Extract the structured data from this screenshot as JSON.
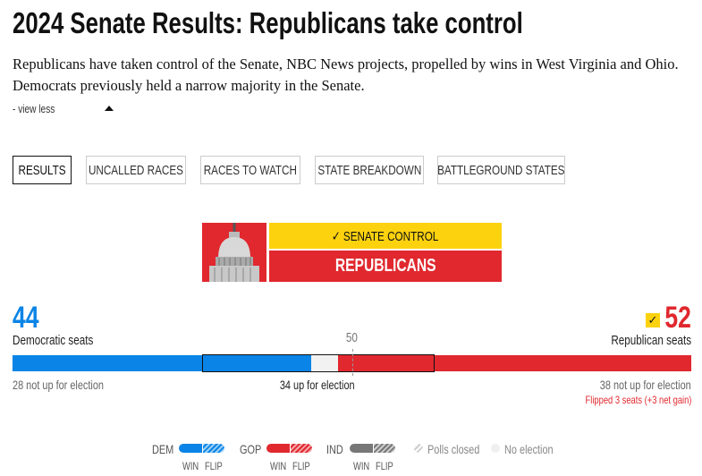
{
  "header": {
    "title": "2024 Senate Results: Republicans take control",
    "description": "Republicans have taken control of the Senate, NBC News projects, propelled by wins in West Virginia and Ohio. Democrats previously held a narrow majority in the Senate.",
    "view_less": "- view less"
  },
  "tabs": [
    {
      "label": "RESULTS",
      "active": true
    },
    {
      "label": "UNCALLED RACES"
    },
    {
      "label": "RACES TO WATCH"
    },
    {
      "label": "STATE BREAKDOWN"
    },
    {
      "label": "BATTLEGROUND STATES"
    }
  ],
  "control": {
    "check": "✓",
    "label": "SENATE CONTROL",
    "winner": "REPUBLICANS"
  },
  "dem": {
    "seats": "44",
    "label": "Democratic seats",
    "not_up": "28 not up for election",
    "not_up_count": 28,
    "won_up": 16,
    "color": "#0a84e6"
  },
  "rep": {
    "seats": "52",
    "label": "Republican seats",
    "not_up": "38 not up for election",
    "not_up_count": 38,
    "won_up": 14,
    "flipped": "Flipped 3 seats (+3 net gain)",
    "check": "✓",
    "color": "#e0282e"
  },
  "majority": "50",
  "up_for_election": "34 up for election",
  "undecided": 4,
  "legend": {
    "dem": "DEM",
    "gop": "GOP",
    "ind": "IND",
    "win": "WIN",
    "flip": "FLIP",
    "polls_closed": "Polls closed",
    "no_election": "No election",
    "ind_color": "#777777"
  }
}
